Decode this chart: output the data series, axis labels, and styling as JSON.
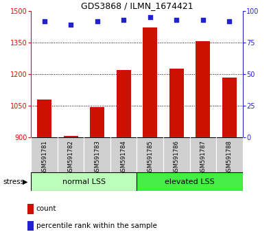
{
  "title": "GDS3868 / ILMN_1674421",
  "categories": [
    "GSM591781",
    "GSM591782",
    "GSM591783",
    "GSM591784",
    "GSM591785",
    "GSM591786",
    "GSM591787",
    "GSM591788"
  ],
  "counts": [
    1080,
    905,
    1045,
    1218,
    1420,
    1225,
    1355,
    1185
  ],
  "percentile_ranks": [
    92,
    89,
    92,
    93,
    95,
    93,
    93,
    92
  ],
  "ylim_left": [
    900,
    1500
  ],
  "ylim_right": [
    0,
    100
  ],
  "yticks_left": [
    900,
    1050,
    1200,
    1350,
    1500
  ],
  "yticks_right": [
    0,
    25,
    50,
    75,
    100
  ],
  "group1_label": "normal LSS",
  "group2_label": "elevated LSS",
  "group1_indices": [
    0,
    1,
    2,
    3
  ],
  "group2_indices": [
    4,
    5,
    6,
    7
  ],
  "bar_color": "#cc1100",
  "dot_color": "#2222cc",
  "group1_color": "#bbffbb",
  "group2_color": "#44ee44",
  "label_bg_color": "#d0d0d0",
  "stress_label": "stress",
  "legend_count_label": "count",
  "legend_pct_label": "percentile rank within the sample",
  "bar_width": 0.55,
  "baseline": 900,
  "grid_lines": [
    1050,
    1200,
    1350
  ],
  "title_fontsize": 9,
  "tick_fontsize": 7,
  "label_fontsize": 6,
  "group_fontsize": 8,
  "legend_fontsize": 7.5
}
